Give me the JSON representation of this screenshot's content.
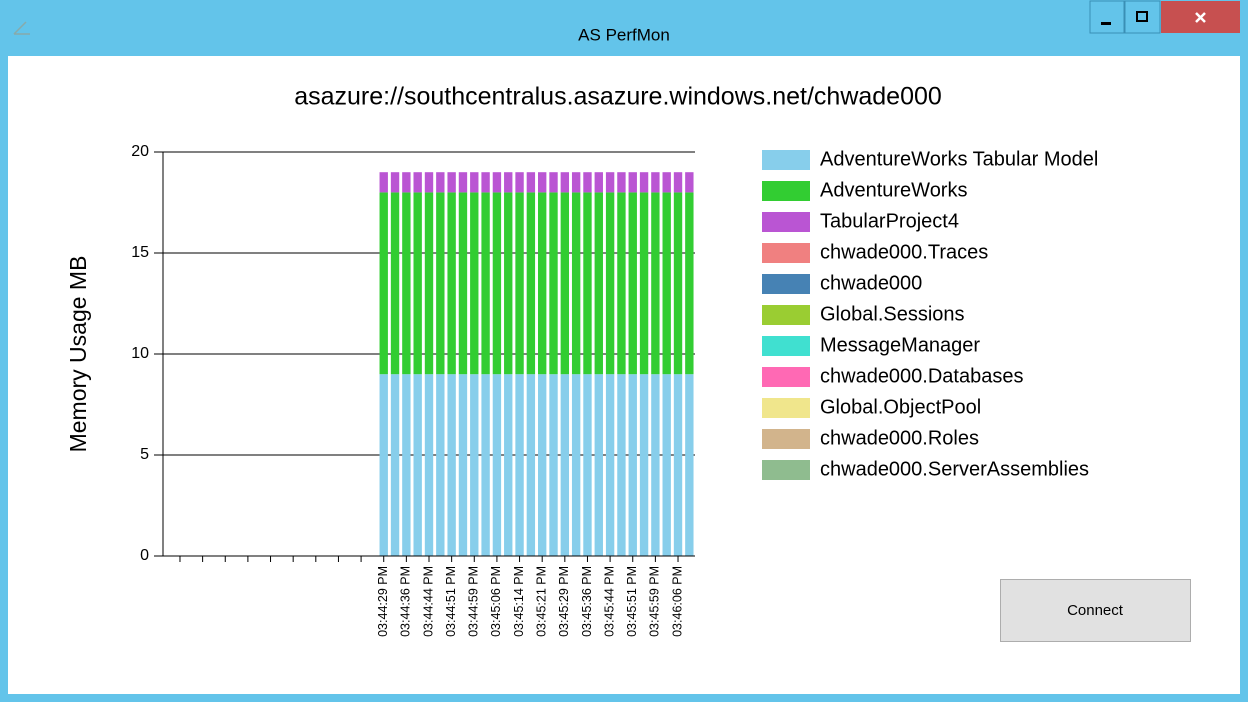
{
  "window": {
    "title": "AS PerfMon"
  },
  "connect_button": {
    "label": "Connect"
  },
  "chart_data": {
    "type": "stacked_bar",
    "title": "asazure://southcentralus.asazure.windows.net/chwade000",
    "y_label": "Memory Usage MB",
    "ylim": [
      0,
      20
    ],
    "yticks": [
      0,
      5,
      10,
      15,
      20
    ],
    "grid": true,
    "legend": "right",
    "categories": [
      null,
      null,
      null,
      null,
      null,
      null,
      null,
      null,
      null,
      null,
      null,
      null,
      null,
      null,
      null,
      null,
      null,
      null,
      null,
      "03:44:29 PM",
      null,
      "03:44:36 PM",
      null,
      "03:44:44 PM",
      null,
      "03:44:51 PM",
      null,
      "03:44:59 PM",
      null,
      "03:45:06 PM",
      null,
      "03:45:14 PM",
      null,
      "03:45:21 PM",
      null,
      "03:45:29 PM",
      null,
      "03:45:36 PM",
      null,
      "03:45:44 PM",
      null,
      "03:45:51 PM",
      null,
      "03:45:59 PM",
      null,
      "03:46:06 PM",
      null
    ],
    "series": [
      {
        "name": "AdventureWorks Tabular Model",
        "color": "#87CEEB",
        "values": [
          null,
          null,
          null,
          null,
          null,
          null,
          null,
          null,
          null,
          null,
          null,
          null,
          null,
          null,
          null,
          null,
          null,
          null,
          null,
          9,
          9,
          9,
          9,
          9,
          9,
          9,
          9,
          9,
          9,
          9,
          9,
          9,
          9,
          9,
          9,
          9,
          9,
          9,
          9,
          9,
          9,
          9,
          9,
          9,
          9,
          9,
          9
        ]
      },
      {
        "name": "AdventureWorks",
        "color": "#32CD32",
        "values": [
          null,
          null,
          null,
          null,
          null,
          null,
          null,
          null,
          null,
          null,
          null,
          null,
          null,
          null,
          null,
          null,
          null,
          null,
          null,
          9,
          9,
          9,
          9,
          9,
          9,
          9,
          9,
          9,
          9,
          9,
          9,
          9,
          9,
          9,
          9,
          9,
          9,
          9,
          9,
          9,
          9,
          9,
          9,
          9,
          9,
          9,
          9
        ]
      },
      {
        "name": "TabularProject4",
        "color": "#BA55D3",
        "values": [
          null,
          null,
          null,
          null,
          null,
          null,
          null,
          null,
          null,
          null,
          null,
          null,
          null,
          null,
          null,
          null,
          null,
          null,
          null,
          1,
          1,
          1,
          1,
          1,
          1,
          1,
          1,
          1,
          1,
          1,
          1,
          1,
          1,
          1,
          1,
          1,
          1,
          1,
          1,
          1,
          1,
          1,
          1,
          1,
          1,
          1,
          1
        ]
      },
      {
        "name": "chwade000.Traces",
        "color": "#F08080",
        "values": [
          null,
          null,
          null,
          null,
          null,
          null,
          null,
          null,
          null,
          null,
          null,
          null,
          null,
          null,
          null,
          null,
          null,
          null,
          null,
          0,
          0,
          0,
          0,
          0,
          0,
          0,
          0,
          0,
          0,
          0,
          0,
          0,
          0,
          0,
          0,
          0,
          0,
          0,
          0,
          0,
          0,
          0,
          0,
          0,
          0,
          0,
          0
        ]
      },
      {
        "name": "chwade000",
        "color": "#4682B4",
        "values": [
          null,
          null,
          null,
          null,
          null,
          null,
          null,
          null,
          null,
          null,
          null,
          null,
          null,
          null,
          null,
          null,
          null,
          null,
          null,
          0,
          0,
          0,
          0,
          0,
          0,
          0,
          0,
          0,
          0,
          0,
          0,
          0,
          0,
          0,
          0,
          0,
          0,
          0,
          0,
          0,
          0,
          0,
          0,
          0,
          0,
          0,
          0
        ]
      },
      {
        "name": "Global.Sessions",
        "color": "#9ACD32",
        "values": [
          null,
          null,
          null,
          null,
          null,
          null,
          null,
          null,
          null,
          null,
          null,
          null,
          null,
          null,
          null,
          null,
          null,
          null,
          null,
          0,
          0,
          0,
          0,
          0,
          0,
          0,
          0,
          0,
          0,
          0,
          0,
          0,
          0,
          0,
          0,
          0,
          0,
          0,
          0,
          0,
          0,
          0,
          0,
          0,
          0,
          0,
          0
        ]
      },
      {
        "name": "MessageManager",
        "color": "#40E0D0",
        "values": [
          null,
          null,
          null,
          null,
          null,
          null,
          null,
          null,
          null,
          null,
          null,
          null,
          null,
          null,
          null,
          null,
          null,
          null,
          null,
          0,
          0,
          0,
          0,
          0,
          0,
          0,
          0,
          0,
          0,
          0,
          0,
          0,
          0,
          0,
          0,
          0,
          0,
          0,
          0,
          0,
          0,
          0,
          0,
          0,
          0,
          0,
          0
        ]
      },
      {
        "name": "chwade000.Databases",
        "color": "#FF69B4",
        "values": [
          null,
          null,
          null,
          null,
          null,
          null,
          null,
          null,
          null,
          null,
          null,
          null,
          null,
          null,
          null,
          null,
          null,
          null,
          null,
          0,
          0,
          0,
          0,
          0,
          0,
          0,
          0,
          0,
          0,
          0,
          0,
          0,
          0,
          0,
          0,
          0,
          0,
          0,
          0,
          0,
          0,
          0,
          0,
          0,
          0,
          0,
          0
        ]
      },
      {
        "name": "Global.ObjectPool",
        "color": "#F0E68C",
        "values": [
          null,
          null,
          null,
          null,
          null,
          null,
          null,
          null,
          null,
          null,
          null,
          null,
          null,
          null,
          null,
          null,
          null,
          null,
          null,
          0,
          0,
          0,
          0,
          0,
          0,
          0,
          0,
          0,
          0,
          0,
          0,
          0,
          0,
          0,
          0,
          0,
          0,
          0,
          0,
          0,
          0,
          0,
          0,
          0,
          0,
          0,
          0
        ]
      },
      {
        "name": "chwade000.Roles",
        "color": "#D2B48C",
        "values": [
          null,
          null,
          null,
          null,
          null,
          null,
          null,
          null,
          null,
          null,
          null,
          null,
          null,
          null,
          null,
          null,
          null,
          null,
          null,
          0,
          0,
          0,
          0,
          0,
          0,
          0,
          0,
          0,
          0,
          0,
          0,
          0,
          0,
          0,
          0,
          0,
          0,
          0,
          0,
          0,
          0,
          0,
          0,
          0,
          0,
          0,
          0
        ]
      },
      {
        "name": "chwade000.ServerAssemblies",
        "color": "#8FBC8F",
        "values": [
          null,
          null,
          null,
          null,
          null,
          null,
          null,
          null,
          null,
          null,
          null,
          null,
          null,
          null,
          null,
          null,
          null,
          null,
          null,
          0,
          0,
          0,
          0,
          0,
          0,
          0,
          0,
          0,
          0,
          0,
          0,
          0,
          0,
          0,
          0,
          0,
          0,
          0,
          0,
          0,
          0,
          0,
          0,
          0,
          0,
          0,
          0
        ]
      }
    ]
  }
}
